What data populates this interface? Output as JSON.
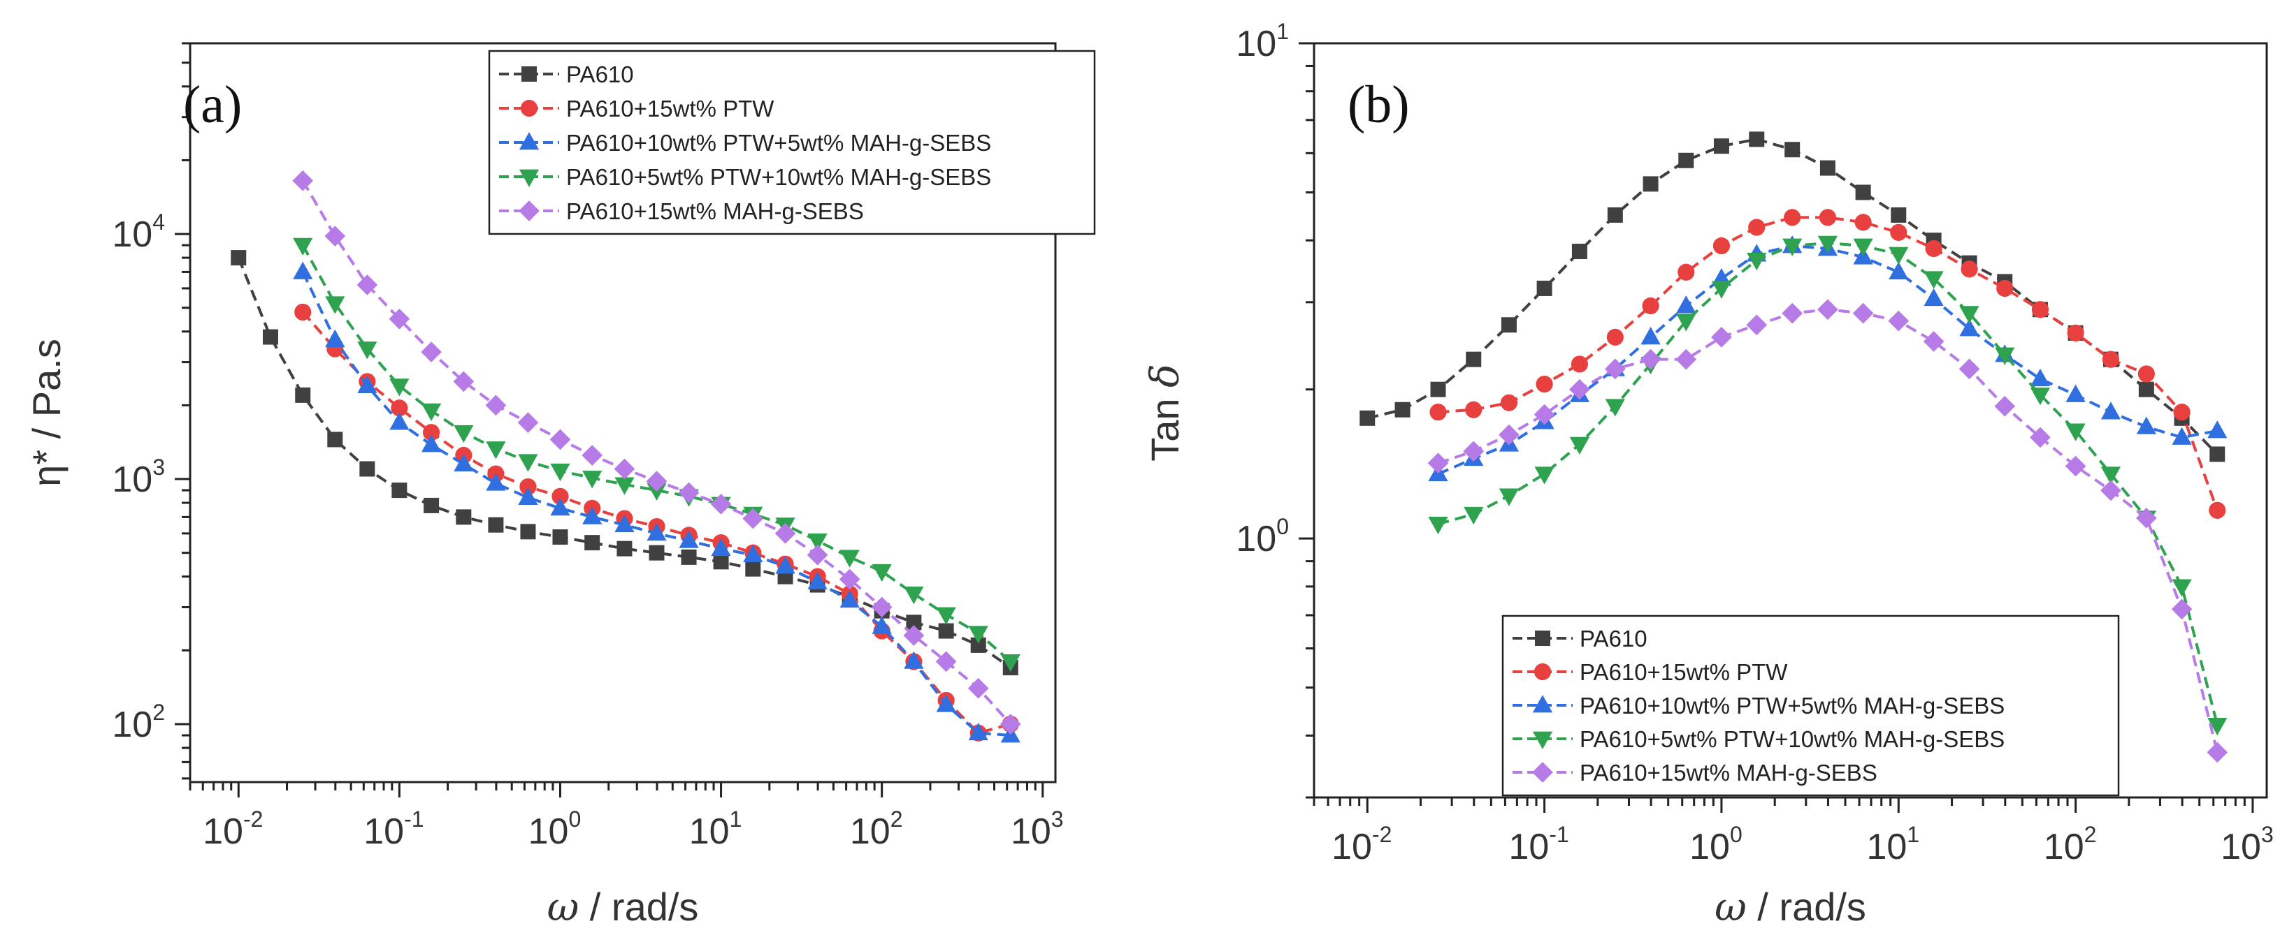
{
  "chart_data": [
    {
      "type": "line",
      "panel_label": "(a)",
      "xlabel_symbol": "ω",
      "xlabel": " / rad/s",
      "ylabel": "η* / Pa.s",
      "xscale": "log",
      "yscale": "log",
      "xlim": [
        0.005,
        1200
      ],
      "ylim": [
        58,
        60000
      ],
      "xticks": [
        {
          "value": 0.01,
          "base": "10",
          "exp": "-2"
        },
        {
          "value": 0.1,
          "base": "10",
          "exp": "-1"
        },
        {
          "value": 1,
          "base": "10",
          "exp": "0"
        },
        {
          "value": 10,
          "base": "10",
          "exp": "1"
        },
        {
          "value": 100,
          "base": "10",
          "exp": "2"
        },
        {
          "value": 1000,
          "base": "10",
          "exp": "3"
        }
      ],
      "yticks": [
        {
          "value": 100,
          "base": "10",
          "exp": "2"
        },
        {
          "value": 1000,
          "base": "10",
          "exp": "3"
        },
        {
          "value": 10000,
          "base": "10",
          "exp": "4"
        }
      ],
      "legend_position": "top-right",
      "series": [
        {
          "name": "PA610",
          "color": "#404040",
          "marker": "square",
          "x": [
            0.01,
            0.0158,
            0.0251,
            0.0398,
            0.0631,
            0.1,
            0.158,
            0.251,
            0.398,
            0.631,
            1,
            1.58,
            2.51,
            3.98,
            6.31,
            10,
            15.8,
            25.1,
            39.8,
            63.1,
            100,
            158,
            251,
            398,
            631
          ],
          "y": [
            8000,
            3800,
            2200,
            1450,
            1100,
            900,
            780,
            700,
            650,
            610,
            580,
            550,
            520,
            500,
            480,
            460,
            430,
            400,
            370,
            330,
            290,
            260,
            240,
            210,
            170
          ]
        },
        {
          "name": "PA610+15wt% PTW",
          "color": "#e8403f",
          "marker": "circle",
          "x": [
            0.0251,
            0.0398,
            0.0631,
            0.1,
            0.158,
            0.251,
            0.398,
            0.631,
            1,
            1.58,
            2.51,
            3.98,
            6.31,
            10,
            15.8,
            25.1,
            39.8,
            63.1,
            100,
            158,
            251,
            398,
            631
          ],
          "y": [
            4800,
            3400,
            2500,
            1950,
            1550,
            1250,
            1050,
            930,
            850,
            760,
            690,
            640,
            590,
            550,
            500,
            450,
            400,
            340,
            240,
            180,
            125,
            92,
            100
          ]
        },
        {
          "name": "PA610+10wt% PTW+5wt% MAH-g-SEBS",
          "color": "#2f6fe0",
          "marker": "triangle-up",
          "x": [
            0.0251,
            0.0398,
            0.0631,
            0.1,
            0.158,
            0.251,
            0.398,
            0.631,
            1,
            1.58,
            2.51,
            3.98,
            6.31,
            10,
            15.8,
            25.1,
            39.8,
            63.1,
            100,
            158,
            251,
            398,
            631
          ],
          "y": [
            7000,
            3700,
            2400,
            1700,
            1380,
            1150,
            960,
            840,
            760,
            700,
            650,
            600,
            560,
            520,
            490,
            440,
            380,
            320,
            250,
            180,
            120,
            92,
            90
          ]
        },
        {
          "name": "PA610+5wt% PTW+10wt% MAH-g-SEBS",
          "color": "#2ea24f",
          "marker": "triangle-down",
          "x": [
            0.0251,
            0.0398,
            0.0631,
            0.1,
            0.158,
            0.251,
            0.398,
            0.631,
            1,
            1.58,
            2.51,
            3.98,
            6.31,
            10,
            15.8,
            25.1,
            39.8,
            63.1,
            100,
            158,
            251,
            398,
            631
          ],
          "y": [
            9000,
            5200,
            3400,
            2400,
            1900,
            1550,
            1330,
            1180,
            1080,
            1010,
            950,
            900,
            850,
            790,
            720,
            650,
            560,
            480,
            420,
            340,
            280,
            235,
            180
          ]
        },
        {
          "name": "PA610+15wt% MAH-g-SEBS",
          "color": "#b77be8",
          "marker": "diamond",
          "x": [
            0.0251,
            0.0398,
            0.0631,
            0.1,
            0.158,
            0.251,
            0.398,
            0.631,
            1,
            1.58,
            2.51,
            3.98,
            6.31,
            10,
            15.8,
            25.1,
            39.8,
            63.1,
            100,
            158,
            251,
            398,
            631
          ],
          "y": [
            16500,
            9800,
            6200,
            4500,
            3300,
            2500,
            2000,
            1700,
            1450,
            1250,
            1100,
            980,
            880,
            790,
            690,
            600,
            490,
            390,
            300,
            230,
            180,
            140,
            100
          ]
        }
      ]
    },
    {
      "type": "line",
      "panel_label": "(b)",
      "xlabel_symbol": "ω",
      "xlabel": " / rad/s",
      "ylabel_text": "Tan ",
      "ylabel_symbol": "δ",
      "xscale": "log",
      "yscale": "log",
      "xlim": [
        0.005,
        1200
      ],
      "ylim": [
        0.3,
        10
      ],
      "xticks": [
        {
          "value": 0.01,
          "base": "10",
          "exp": "-2"
        },
        {
          "value": 0.1,
          "base": "10",
          "exp": "-1"
        },
        {
          "value": 1,
          "base": "10",
          "exp": "0"
        },
        {
          "value": 10,
          "base": "10",
          "exp": "1"
        },
        {
          "value": 100,
          "base": "10",
          "exp": "2"
        },
        {
          "value": 1000,
          "base": "10",
          "exp": "3"
        }
      ],
      "yticks": [
        {
          "value": 1,
          "base": "10",
          "exp": "0"
        },
        {
          "value": 10,
          "base": "10",
          "exp": "1"
        }
      ],
      "legend_position": "bottom-right",
      "series": [
        {
          "name": "PA610",
          "color": "#404040",
          "marker": "square",
          "x": [
            0.01,
            0.0158,
            0.0251,
            0.0398,
            0.0631,
            0.1,
            0.158,
            0.251,
            0.398,
            0.631,
            1,
            1.58,
            2.51,
            3.98,
            6.31,
            10,
            15.8,
            25.1,
            39.8,
            63.1,
            100,
            158,
            251,
            398,
            631
          ],
          "y": [
            1.75,
            1.82,
            2.0,
            2.3,
            2.7,
            3.2,
            3.8,
            4.5,
            5.2,
            5.8,
            6.2,
            6.4,
            6.1,
            5.6,
            5.0,
            4.5,
            4.0,
            3.6,
            3.3,
            2.9,
            2.6,
            2.3,
            2.0,
            1.75,
            1.48
          ]
        },
        {
          "name": "PA610+15wt% PTW",
          "color": "#e8403f",
          "marker": "circle",
          "x": [
            0.0251,
            0.0398,
            0.0631,
            0.1,
            0.158,
            0.251,
            0.398,
            0.631,
            1,
            1.58,
            2.51,
            3.98,
            6.31,
            10,
            15.8,
            25.1,
            39.8,
            63.1,
            100,
            158,
            251,
            398,
            631
          ],
          "y": [
            1.8,
            1.82,
            1.88,
            2.05,
            2.25,
            2.55,
            2.95,
            3.45,
            3.9,
            4.25,
            4.45,
            4.45,
            4.35,
            4.15,
            3.85,
            3.5,
            3.2,
            2.9,
            2.6,
            2.3,
            2.15,
            1.8,
            1.14
          ]
        },
        {
          "name": "PA610+10wt% PTW+5wt% MAH-g-SEBS",
          "color": "#2f6fe0",
          "marker": "triangle-up",
          "x": [
            0.0251,
            0.0398,
            0.0631,
            0.1,
            0.158,
            0.251,
            0.398,
            0.631,
            1,
            1.58,
            2.51,
            3.98,
            6.31,
            10,
            15.8,
            25.1,
            39.8,
            63.1,
            100,
            158,
            251,
            398,
            631
          ],
          "y": [
            1.35,
            1.45,
            1.55,
            1.72,
            1.95,
            2.2,
            2.55,
            2.95,
            3.35,
            3.75,
            3.9,
            3.85,
            3.7,
            3.45,
            3.05,
            2.65,
            2.35,
            2.1,
            1.95,
            1.8,
            1.68,
            1.6,
            1.65
          ]
        },
        {
          "name": "PA610+5wt% PTW+10wt% MAH-g-SEBS",
          "color": "#2ea24f",
          "marker": "triangle-down",
          "x": [
            0.0251,
            0.0398,
            0.0631,
            0.1,
            0.158,
            0.251,
            0.398,
            0.631,
            1,
            1.58,
            2.51,
            3.98,
            6.31,
            10,
            15.8,
            25.1,
            39.8,
            63.1,
            100,
            158,
            251,
            398,
            631
          ],
          "y": [
            1.07,
            1.12,
            1.22,
            1.35,
            1.55,
            1.85,
            2.25,
            2.75,
            3.2,
            3.65,
            3.9,
            3.95,
            3.9,
            3.75,
            3.35,
            2.85,
            2.35,
            1.95,
            1.65,
            1.35,
            1.1,
            0.8,
            0.42
          ]
        },
        {
          "name": "PA610+15wt% MAH-g-SEBS",
          "color": "#b77be8",
          "marker": "diamond",
          "x": [
            0.0251,
            0.0398,
            0.0631,
            0.1,
            0.158,
            0.251,
            0.398,
            0.631,
            1,
            1.58,
            2.51,
            3.98,
            6.31,
            10,
            15.8,
            25.1,
            39.8,
            63.1,
            100,
            158,
            251,
            398,
            631
          ],
          "y": [
            1.42,
            1.5,
            1.62,
            1.78,
            2.0,
            2.2,
            2.3,
            2.3,
            2.55,
            2.7,
            2.85,
            2.9,
            2.85,
            2.75,
            2.5,
            2.2,
            1.85,
            1.6,
            1.4,
            1.25,
            1.1,
            0.72,
            0.37
          ]
        }
      ]
    }
  ]
}
